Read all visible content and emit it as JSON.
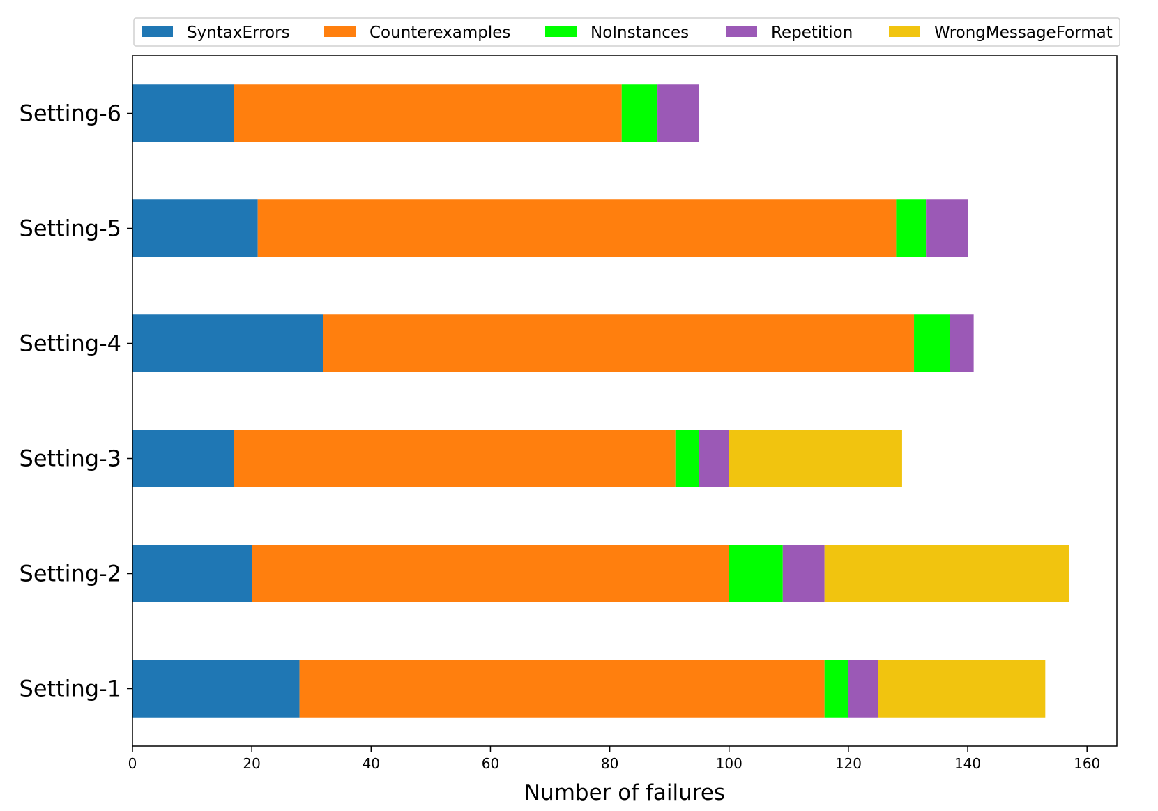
{
  "chart_data": {
    "type": "bar",
    "orientation": "horizontal",
    "stacked": true,
    "categories": [
      "Setting-1",
      "Setting-2",
      "Setting-3",
      "Setting-4",
      "Setting-5",
      "Setting-6"
    ],
    "series": [
      {
        "name": "SyntaxErrors",
        "color": "#1f77b4",
        "values": [
          28,
          20,
          17,
          32,
          21,
          17
        ]
      },
      {
        "name": "Counterexamples",
        "color": "#ff7f0e",
        "values": [
          88,
          80,
          74,
          99,
          107,
          65
        ]
      },
      {
        "name": "NoInstances",
        "color": "#00ff00",
        "values": [
          4,
          9,
          4,
          6,
          5,
          6
        ]
      },
      {
        "name": "Repetition",
        "color": "#9b59b6",
        "values": [
          5,
          7,
          5,
          4,
          7,
          7
        ]
      },
      {
        "name": "WrongMessageFormat",
        "color": "#f1c40f",
        "values": [
          28,
          41,
          29,
          0,
          0,
          0
        ]
      }
    ],
    "title": "",
    "xlabel": "Number of failures",
    "ylabel": "",
    "xlim": [
      0,
      165
    ],
    "xticks": [
      0,
      20,
      40,
      60,
      80,
      100,
      120,
      140,
      160
    ],
    "grid": false,
    "legend_position": "top"
  }
}
